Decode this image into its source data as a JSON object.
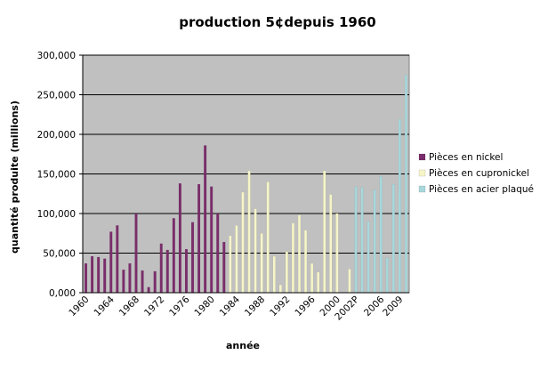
{
  "chart_data": {
    "type": "bar",
    "title": "production 5¢depuis 1960",
    "xlabel": "année",
    "ylabel": "quantité produite (millions)",
    "ylim": [
      0,
      300000
    ],
    "y_ticks": [
      "0,000",
      "50,000",
      "100,000",
      "150,000",
      "200,000",
      "250,000",
      "300,000"
    ],
    "x_tick_labels": [
      "1960",
      "1964",
      "1968",
      "1972",
      "1976",
      "1980",
      "1984",
      "1988",
      "1992",
      "1996",
      "2000",
      "2002P",
      "2006",
      "2009"
    ],
    "grid": true,
    "legend_position": "right",
    "plot_background": "#c0c0c0",
    "categories": [
      "1960",
      "1961",
      "1962",
      "1963",
      "1964",
      "1965",
      "1966",
      "1967",
      "1968",
      "1969",
      "1970",
      "1971",
      "1972",
      "1973",
      "1974",
      "1975",
      "1976",
      "1977",
      "1978",
      "1979",
      "1980",
      "1981",
      "1982",
      "1983",
      "1984",
      "1985",
      "1986",
      "1987",
      "1988",
      "1989",
      "1990",
      "1991",
      "1992",
      "1993",
      "1994",
      "1995",
      "1996",
      "1997",
      "1998",
      "1999",
      "2000",
      "2001",
      "2002",
      "2002P",
      "2003",
      "2004",
      "2005",
      "2006",
      "2007",
      "2008",
      "2009",
      "2010"
    ],
    "series": [
      {
        "name": "Pièces en nickel",
        "color": "#7b2d6b",
        "values": [
          37000,
          46000,
          45000,
          43000,
          77000,
          85000,
          29000,
          37000,
          100000,
          28000,
          7000,
          27000,
          62000,
          54000,
          94000,
          138000,
          55000,
          89000,
          137000,
          186000,
          134000,
          100000,
          64000,
          null,
          null,
          null,
          null,
          null,
          null,
          null,
          null,
          null,
          null,
          null,
          null,
          null,
          null,
          null,
          null,
          null,
          null,
          null,
          null,
          null,
          null,
          null,
          null,
          null,
          null,
          null,
          null,
          null
        ]
      },
      {
        "name": "Pièces en cupronickel",
        "color": "#f5f5c8",
        "values": [
          null,
          null,
          null,
          null,
          null,
          null,
          null,
          null,
          null,
          null,
          null,
          null,
          null,
          null,
          null,
          null,
          null,
          null,
          null,
          null,
          null,
          null,
          null,
          72000,
          85000,
          127000,
          154000,
          106000,
          75000,
          140000,
          46000,
          10000,
          52000,
          88000,
          98000,
          79000,
          37000,
          26000,
          154000,
          124000,
          100000,
          null,
          30000,
          null,
          null,
          null,
          null,
          null,
          null,
          null,
          null,
          null
        ]
      },
      {
        "name": "Pièces en acier plaqué",
        "color": "#a8d8dc",
        "values": [
          null,
          null,
          null,
          null,
          null,
          null,
          null,
          null,
          null,
          null,
          null,
          null,
          null,
          null,
          null,
          null,
          null,
          null,
          null,
          null,
          null,
          null,
          null,
          null,
          null,
          null,
          null,
          null,
          null,
          null,
          null,
          null,
          null,
          null,
          null,
          null,
          null,
          null,
          null,
          null,
          null,
          null,
          null,
          134000,
          133000,
          90000,
          130000,
          147000,
          44000,
          137000,
          219000,
          275000
        ]
      }
    ]
  }
}
